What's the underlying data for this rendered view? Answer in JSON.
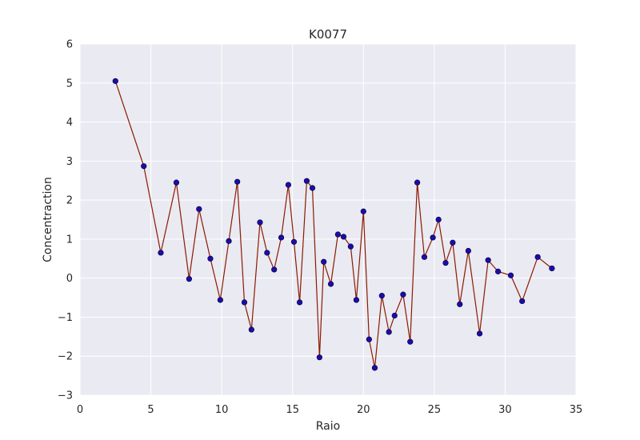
{
  "chart_data": {
    "type": "line",
    "title": "K0077",
    "xlabel": "Raio",
    "ylabel": "Concentraction",
    "xlim": [
      0,
      35
    ],
    "ylim": [
      -3,
      6
    ],
    "xticks": [
      0,
      5,
      10,
      15,
      20,
      25,
      30,
      35
    ],
    "yticks": [
      -3,
      -2,
      -1,
      0,
      1,
      2,
      3,
      4,
      5,
      6
    ],
    "xtick_labels": [
      "0",
      "5",
      "10",
      "15",
      "20",
      "25",
      "30",
      "35"
    ],
    "ytick_labels": [
      "−3",
      "−2",
      "−1",
      "0",
      "1",
      "2",
      "3",
      "4",
      "5",
      "6"
    ],
    "grid": true,
    "colors": {
      "background": "#eaeaf2",
      "grid": "#ffffff",
      "line": "#8b1a00",
      "marker": "#1a0dab"
    },
    "series": [
      {
        "x": [
          2.5,
          4.5,
          5.7,
          6.8,
          7.7,
          8.4,
          9.2,
          9.9,
          10.5,
          11.1,
          11.6,
          12.1,
          12.7,
          13.2,
          13.7,
          14.2,
          14.7,
          15.1,
          15.5,
          16.0,
          16.4,
          16.9,
          17.2,
          17.7,
          18.2,
          18.6,
          19.1,
          19.5,
          20.0,
          20.4,
          20.8,
          21.3,
          21.8,
          22.2,
          22.8,
          23.3,
          23.8,
          24.3,
          24.9,
          25.3,
          25.8,
          26.3,
          26.8,
          27.4,
          28.2,
          28.8,
          29.5,
          30.4,
          31.2,
          32.3,
          33.3
        ],
        "values": [
          5.05,
          2.87,
          0.65,
          2.45,
          -0.02,
          1.77,
          0.5,
          -0.56,
          0.95,
          2.47,
          -0.62,
          -1.32,
          1.43,
          0.65,
          0.22,
          1.04,
          2.39,
          0.93,
          -0.62,
          2.49,
          2.31,
          -2.03,
          0.42,
          -0.15,
          1.12,
          1.06,
          0.81,
          -0.56,
          1.71,
          -1.57,
          -2.3,
          -0.45,
          -1.38,
          -0.96,
          -0.42,
          -1.63,
          2.45,
          0.54,
          1.04,
          1.5,
          0.39,
          0.91,
          -0.67,
          0.7,
          -1.42,
          0.46,
          0.17,
          0.07,
          -0.59,
          0.54,
          0.25
        ]
      }
    ]
  }
}
